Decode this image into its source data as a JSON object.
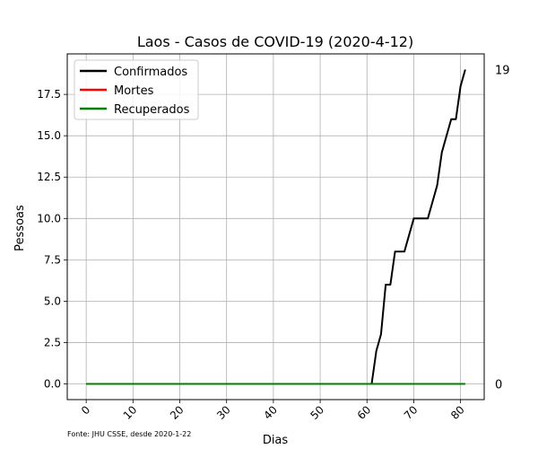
{
  "chart_data": {
    "type": "line",
    "title": "Laos - Casos de COVID-19 (2020-4-12)",
    "xlabel": "Dias",
    "ylabel": "Pessoas",
    "xlim": [
      -4.05,
      85.05
    ],
    "ylim": [
      -0.95,
      19.95
    ],
    "xticks": [
      0,
      10,
      20,
      30,
      40,
      50,
      60,
      70,
      80
    ],
    "yticks": [
      0.0,
      2.5,
      5.0,
      7.5,
      10.0,
      12.5,
      15.0,
      17.5
    ],
    "ytick_labels": [
      "0.0",
      "2.5",
      "5.0",
      "7.5",
      "10.0",
      "12.5",
      "15.0",
      "17.5"
    ],
    "grid": true,
    "legend_position": "top-left",
    "series": [
      {
        "name": "Confirmados",
        "color": "#000000",
        "x": [
          0,
          61,
          62,
          63,
          64,
          65,
          66,
          67,
          68,
          69,
          70,
          71,
          72,
          73,
          74,
          75,
          76,
          77,
          78,
          79,
          80,
          81
        ],
        "y": [
          0,
          0,
          2,
          3,
          6,
          6,
          8,
          8,
          8,
          9,
          10,
          10,
          10,
          10,
          11,
          12,
          14,
          15,
          16,
          16,
          18,
          19
        ]
      },
      {
        "name": "Mortes",
        "color": "#ff0000",
        "x": [
          0,
          81
        ],
        "y": [
          0,
          0
        ]
      },
      {
        "name": "Recuperados",
        "color": "#008000",
        "x": [
          0,
          81
        ],
        "y": [
          0,
          0
        ]
      }
    ],
    "right_annotations": [
      {
        "label": "19",
        "value": 19
      },
      {
        "label": "0",
        "value": 0
      }
    ],
    "source_note": "Fonte: JHU CSSE, desde 2020-1-22"
  }
}
